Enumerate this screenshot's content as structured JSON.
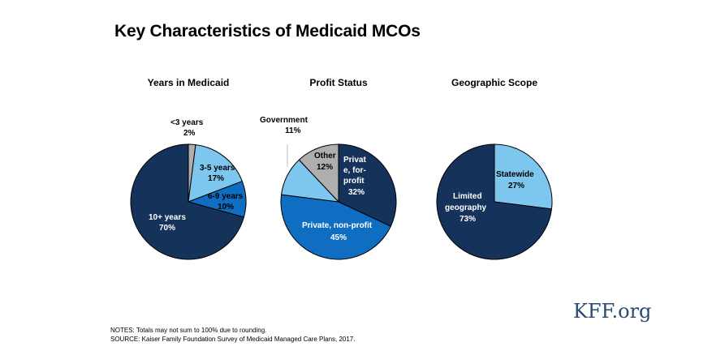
{
  "title": "Key Characteristics  of Medicaid MCOs",
  "colors": {
    "dark_navy": "#15335a",
    "medium_blue": "#0f6dc2",
    "light_blue": "#7dc6ee",
    "gray": "#aeaeae",
    "brand": "#2a4a72"
  },
  "chart_data": [
    {
      "type": "pie",
      "title": "Years in Medicaid",
      "slices": [
        {
          "label": "<3 years",
          "value": 2,
          "display": "2%",
          "color": "#aeaeae"
        },
        {
          "label": "3-5 years",
          "value": 17,
          "display": "17%",
          "color": "#7dc6ee"
        },
        {
          "label": "6-9 years",
          "value": 10,
          "display": "10%",
          "color": "#0f6dc2"
        },
        {
          "label": "10+ years",
          "value": 70,
          "display": "70%",
          "color": "#15335a"
        }
      ]
    },
    {
      "type": "pie",
      "title": "Profit Status",
      "slices": [
        {
          "label": "Privat e, for- profit",
          "value": 32,
          "display": "32%",
          "color": "#15335a"
        },
        {
          "label": "Private, non-profit",
          "value": 45,
          "display": "45%",
          "color": "#0f6dc2"
        },
        {
          "label": "Government",
          "value": 11,
          "display": "11%",
          "color": "#7dc6ee"
        },
        {
          "label": "Other",
          "value": 12,
          "display": "12%",
          "color": "#aeaeae"
        }
      ]
    },
    {
      "type": "pie",
      "title": "Geographic Scope",
      "slices": [
        {
          "label": "Statewide",
          "value": 27,
          "display": "27%",
          "color": "#7dc6ee"
        },
        {
          "label": "Limited geography",
          "value": 73,
          "display": "73%",
          "color": "#15335a"
        }
      ]
    }
  ],
  "logo": "KFF.org",
  "notes": [
    "NOTES: Totals may not sum to 100% due to rounding.",
    "SOURCE: Kaiser Family Foundation  Survey  of Medicaid Managed Care Plans, 2017."
  ]
}
